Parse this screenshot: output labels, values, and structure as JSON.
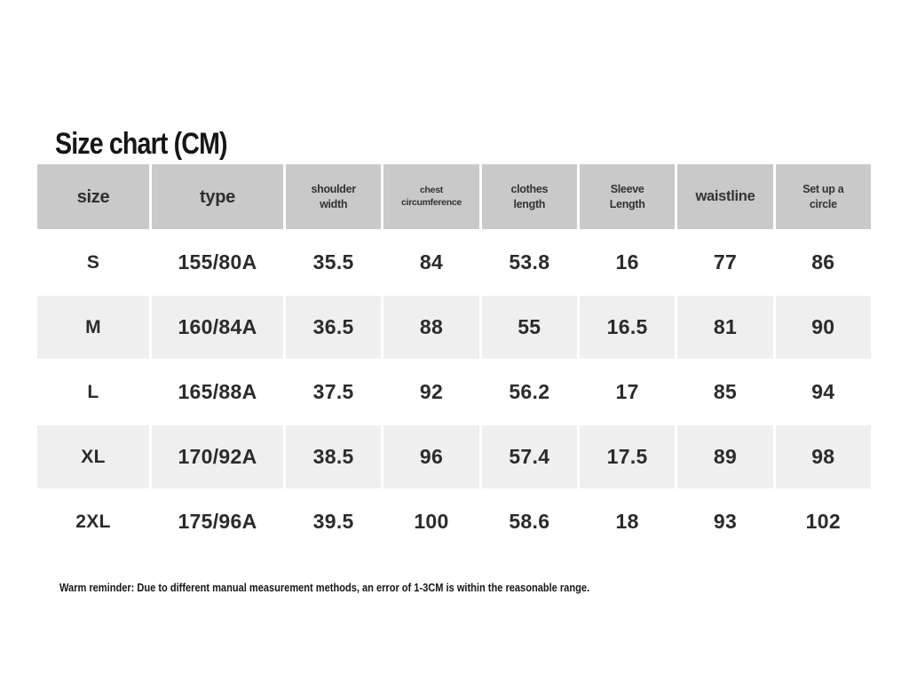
{
  "page": {
    "title": "Size chart (CM)",
    "footer_note": "Warm reminder: Due to different manual measurement methods, an error of 1-3CM is within the reasonable range."
  },
  "colors": {
    "header_bg": "#c9c9c9",
    "row_alt_bg": "#efefef",
    "page_bg": "#ffffff",
    "text": "#2b2b2b"
  },
  "chart_data": {
    "type": "table",
    "title": "Size chart (CM)",
    "columns": [
      "size",
      "type",
      "shoulder width",
      "chest circumference",
      "clothes length",
      "Sleeve Length",
      "waistline",
      "Set up a circle"
    ],
    "rows": [
      [
        "S",
        "155/80A",
        "35.5",
        "84",
        "53.8",
        "16",
        "77",
        "86"
      ],
      [
        "M",
        "160/84A",
        "36.5",
        "88",
        "55",
        "16.5",
        "81",
        "90"
      ],
      [
        "L",
        "165/88A",
        "37.5",
        "92",
        "56.2",
        "17",
        "85",
        "94"
      ],
      [
        "XL",
        "170/92A",
        "38.5",
        "96",
        "57.4",
        "17.5",
        "89",
        "98"
      ],
      [
        "2XL",
        "175/96A",
        "39.5",
        "100",
        "58.6",
        "18",
        "93",
        "102"
      ]
    ],
    "note": "Warm reminder: Due to different manual measurement methods, an error of 1-3CM is within the reasonable range."
  }
}
